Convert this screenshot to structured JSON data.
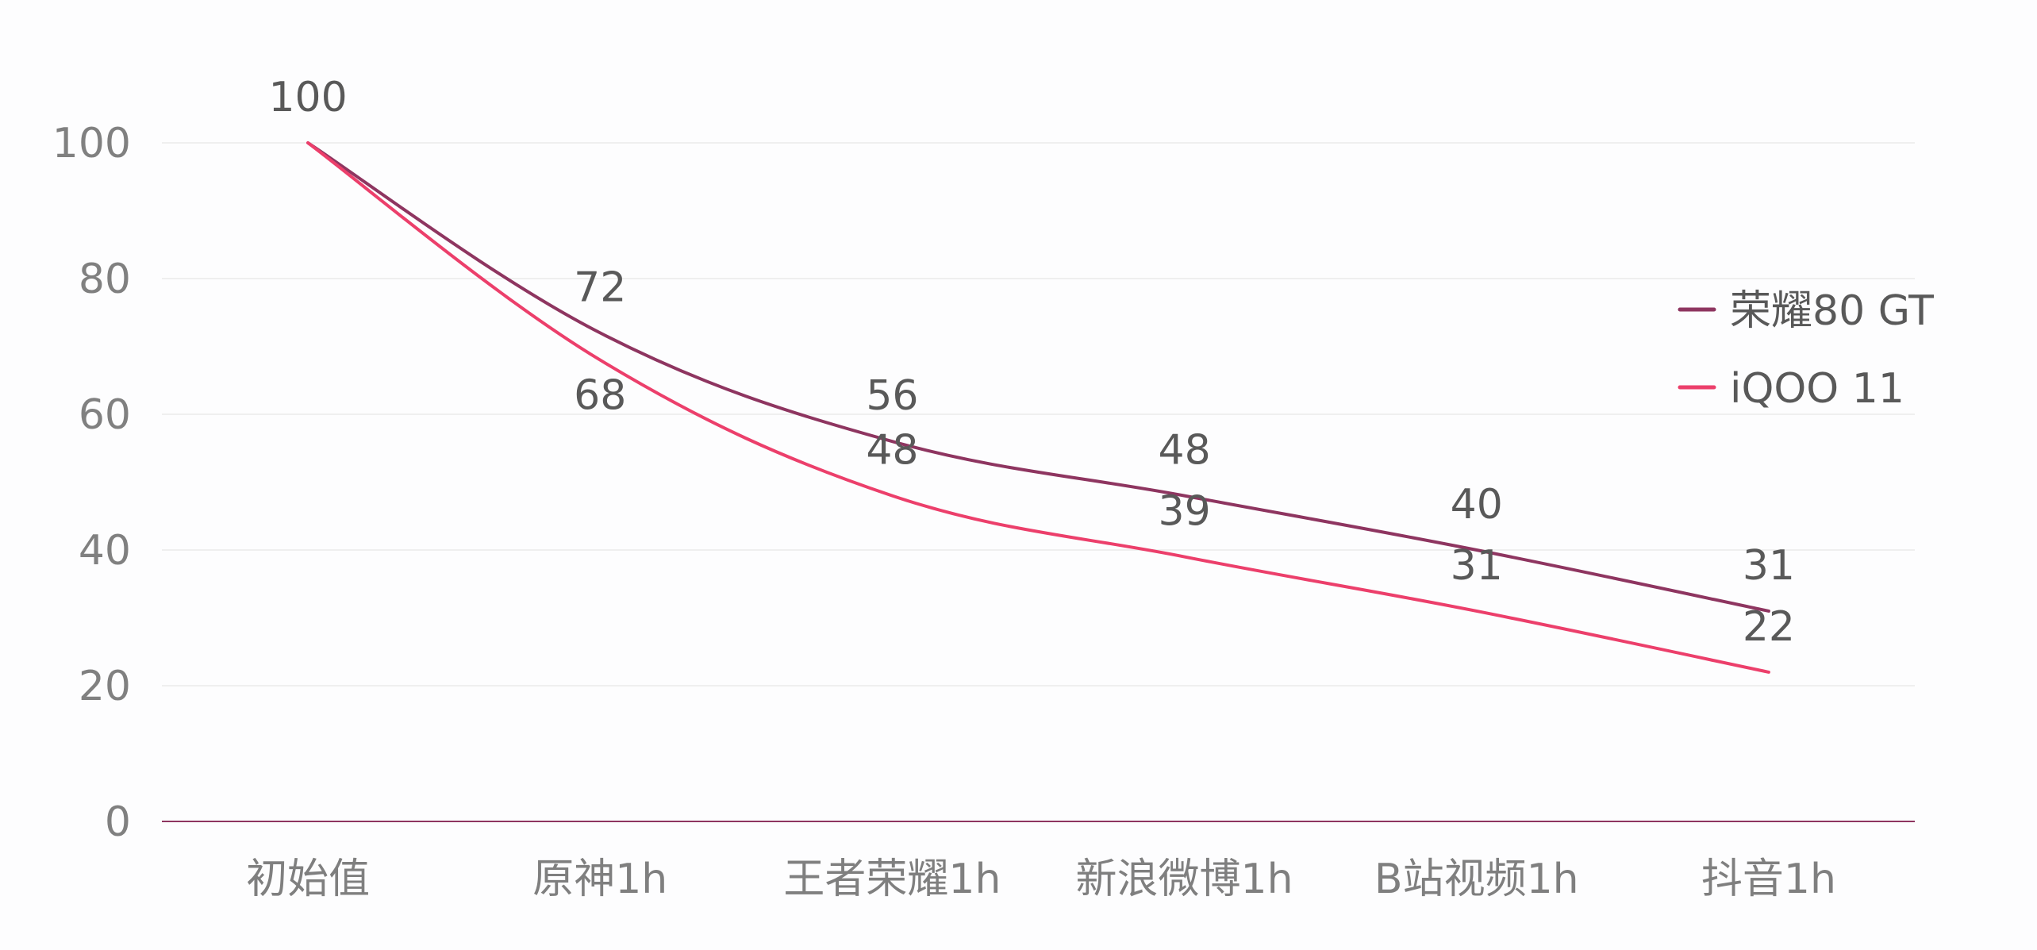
{
  "chart_data": {
    "type": "line",
    "title": "",
    "xlabel": "",
    "ylabel": "",
    "categories": [
      "初始值",
      "原神1h",
      "王者荣耀1h",
      "新浪微博1h",
      "B站视频1h",
      "抖音1h"
    ],
    "ylim": [
      0,
      100
    ],
    "yticks": [
      0,
      20,
      40,
      60,
      80,
      100
    ],
    "grid": true,
    "smooth": true,
    "legend_position": "right",
    "series": [
      {
        "name": "荣耀80 GT",
        "color": "#8e3560",
        "values": [
          100,
          72,
          56,
          48,
          40,
          31
        ],
        "labels": [
          "100",
          "72",
          "56",
          "48",
          "40",
          "31"
        ]
      },
      {
        "name": "iQOO 11",
        "color": "#ec3f6b",
        "values": [
          100,
          68,
          48,
          39,
          31,
          22
        ],
        "labels": [
          "",
          "68",
          "48",
          "39",
          "31",
          "22"
        ]
      }
    ]
  }
}
